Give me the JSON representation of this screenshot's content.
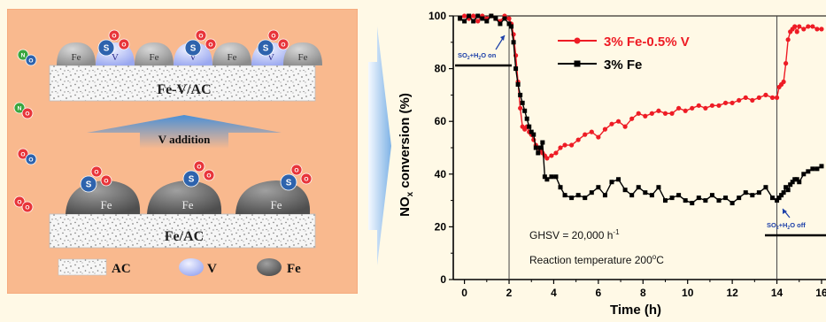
{
  "scheme": {
    "fe_v_ac_label": "Fe-V/AC",
    "fe_ac_label": "Fe/AC",
    "v_addition_label": "V addition",
    "particle_top": [
      "Fe",
      "V",
      "Fe",
      "V",
      "Fe",
      "V",
      "Fe"
    ],
    "particle_bottom": [
      "Fe",
      "Fe",
      "Fe"
    ],
    "sulfur_symbol": "S",
    "nitrogen_symbol": "N",
    "oxygen_symbol": "O",
    "legend": [
      {
        "label": "AC"
      },
      {
        "label": "V",
        "color": "#a9b7f5"
      },
      {
        "label": "Fe",
        "color": "#6e6e6e"
      }
    ],
    "colors": {
      "panel": "#f9b98e",
      "fe": "#a9a9a9",
      "v": "#b9c4fb",
      "sulfur": "#2e63ad",
      "oxygen": "#e8353a",
      "nitrogen": "#3aa63f"
    }
  },
  "chart_data": {
    "type": "line",
    "xlabel": "Time (h)",
    "ylabel_parts": [
      "NO",
      "x",
      " conversion (%)"
    ],
    "xlim": [
      -0.5,
      16.2
    ],
    "ylim": [
      0,
      100
    ],
    "xticks": [
      0,
      2,
      4,
      6,
      8,
      10,
      12,
      14,
      16
    ],
    "yticks": [
      0,
      20,
      40,
      60,
      80,
      100
    ],
    "xtick_labels": [
      "0",
      "2",
      "4",
      "6",
      "8",
      "10",
      "12",
      "14",
      "16"
    ],
    "ytick_labels": [
      "0",
      "20",
      "40",
      "60",
      "80",
      "100"
    ],
    "series": [
      {
        "name": "3% Fe-0.5% V",
        "color": "#ee1c25",
        "marker": "circle",
        "x": [
          -0.2,
          0,
          0.2,
          0.4,
          0.6,
          0.8,
          1,
          1.2,
          1.4,
          1.6,
          1.8,
          2,
          2.1,
          2.2,
          2.3,
          2.4,
          2.5,
          2.6,
          2.7,
          2.8,
          2.9,
          3,
          3.1,
          3.2,
          3.3,
          3.4,
          3.5,
          3.6,
          3.7,
          3.9,
          4.1,
          4.3,
          4.5,
          4.8,
          5.1,
          5.4,
          5.7,
          6,
          6.3,
          6.6,
          6.9,
          7.2,
          7.5,
          7.8,
          8.1,
          8.4,
          8.7,
          9,
          9.3,
          9.6,
          9.9,
          10.2,
          10.5,
          10.8,
          11.1,
          11.4,
          11.7,
          12,
          12.3,
          12.6,
          12.9,
          13.2,
          13.5,
          13.8,
          14,
          14.1,
          14.2,
          14.3,
          14.4,
          14.5,
          14.6,
          14.7,
          14.8,
          14.9,
          15,
          15.2,
          15.4,
          15.6,
          15.8,
          16
        ],
        "y": [
          99,
          100,
          99,
          100,
          98,
          100,
          99,
          100,
          99,
          98,
          100,
          99,
          97,
          93,
          85,
          75,
          65,
          58,
          57,
          58,
          56,
          55,
          53,
          51,
          50,
          49,
          48,
          47,
          46,
          47,
          48,
          50,
          51,
          51,
          53,
          55,
          56,
          54,
          57,
          59,
          60,
          58,
          61,
          63,
          62,
          63,
          64,
          63,
          63,
          65,
          64,
          65,
          66,
          65,
          66,
          66,
          67,
          67,
          68,
          69,
          68,
          69,
          70,
          69,
          69,
          73,
          74,
          75,
          82,
          91,
          94,
          95,
          96,
          94,
          96,
          95,
          96,
          96,
          95,
          95
        ]
      },
      {
        "name": "3% Fe",
        "color": "#000000",
        "marker": "square",
        "x": [
          -0.2,
          0,
          0.2,
          0.4,
          0.6,
          0.8,
          1,
          1.2,
          1.4,
          1.6,
          1.8,
          2,
          2.1,
          2.2,
          2.3,
          2.4,
          2.5,
          2.6,
          2.7,
          2.8,
          2.9,
          3,
          3.1,
          3.2,
          3.3,
          3.4,
          3.5,
          3.6,
          3.7,
          3.9,
          4.1,
          4.3,
          4.5,
          4.8,
          5.1,
          5.4,
          5.7,
          6,
          6.3,
          6.6,
          6.9,
          7.2,
          7.5,
          7.8,
          8.1,
          8.4,
          8.7,
          9,
          9.3,
          9.6,
          9.9,
          10.2,
          10.5,
          10.8,
          11.1,
          11.4,
          11.7,
          12,
          12.3,
          12.6,
          12.9,
          13.2,
          13.5,
          13.8,
          14,
          14.1,
          14.2,
          14.3,
          14.4,
          14.5,
          14.6,
          14.7,
          14.8,
          14.9,
          15,
          15.2,
          15.4,
          15.6,
          15.8,
          16
        ],
        "y": [
          99,
          98,
          100,
          98,
          100,
          99,
          98,
          100,
          99,
          97,
          99,
          97,
          96,
          90,
          80,
          74,
          70,
          67,
          64,
          61,
          58,
          56,
          55,
          50,
          48,
          50,
          52,
          39,
          38,
          39,
          39,
          35,
          32,
          31,
          32,
          31,
          33,
          35,
          32,
          37,
          38,
          34,
          32,
          35,
          33,
          32,
          35,
          30,
          31,
          32,
          30,
          29,
          31,
          30,
          32,
          30,
          31,
          29,
          31,
          33,
          32,
          33,
          35,
          31,
          30,
          31,
          32,
          33,
          35,
          34,
          36,
          37,
          38,
          38,
          37,
          40,
          41,
          42,
          42,
          43
        ]
      }
    ],
    "annotations": {
      "so2_on": {
        "line1": "SO",
        "sub1": "2",
        "line2": "+H",
        "sub2": "2",
        "line3": "O on"
      },
      "so2_off": {
        "line1": "SO",
        "sub1": "2",
        "line2": "+H",
        "sub2": "2",
        "line3": "O off"
      },
      "ghsv": {
        "prefix": "GHSV = 20,000 h",
        "sup": "-1"
      },
      "reaction_temperature": {
        "prefix": "Reaction temperature 200",
        "sup": "o",
        "suffix": "C"
      }
    },
    "legend_placement": "top-right",
    "grid": false
  }
}
